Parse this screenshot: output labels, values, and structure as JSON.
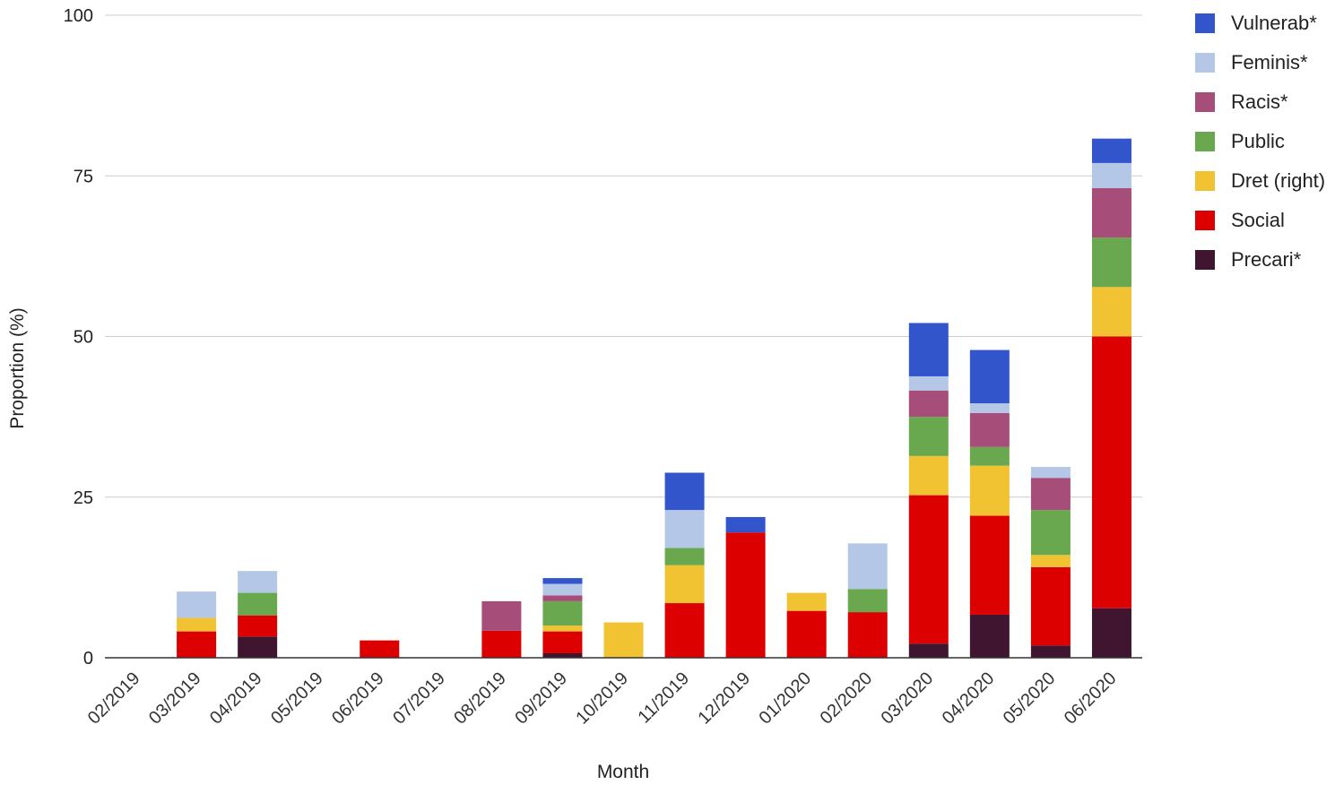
{
  "chart_data": {
    "type": "bar",
    "stacked": true,
    "xlabel": "Month",
    "ylabel": "Proportion (%)",
    "ylim": [
      0,
      100
    ],
    "yticks": [
      0,
      25,
      50,
      75,
      100
    ],
    "grid": true,
    "legend_position": "right",
    "categories": [
      "02/2019",
      "03/2019",
      "04/2019",
      "05/2019",
      "06/2019",
      "07/2019",
      "08/2019",
      "09/2019",
      "10/2019",
      "11/2019",
      "12/2019",
      "01/2020",
      "02/2020",
      "03/2020",
      "04/2020",
      "05/2020",
      "06/2020"
    ],
    "series": [
      {
        "name": "Precari*",
        "color": "#3f1530",
        "values": [
          0,
          0,
          3.3,
          0,
          0,
          0,
          0,
          0.7,
          0,
          0,
          0,
          0,
          0,
          2.2,
          6.7,
          1.9,
          7.7
        ]
      },
      {
        "name": "Social",
        "color": "#dd0000",
        "values": [
          0,
          4.1,
          3.3,
          0,
          2.7,
          0,
          4.2,
          3.4,
          0,
          8.5,
          19.5,
          7.3,
          7.1,
          23.1,
          15.4,
          12.2,
          42.3
        ]
      },
      {
        "name": "Dret (right)",
        "color": "#f1c232",
        "values": [
          0,
          2.1,
          0,
          0,
          0,
          0,
          0,
          0.9,
          5.5,
          5.9,
          0,
          2.8,
          0,
          6.1,
          7.8,
          1.9,
          7.7
        ]
      },
      {
        "name": "Public",
        "color": "#6aa84f",
        "values": [
          0,
          0,
          3.5,
          0,
          0,
          0,
          0,
          3.8,
          0,
          2.7,
          0,
          0,
          3.6,
          6.1,
          2.9,
          7.0,
          7.7
        ]
      },
      {
        "name": "Racis*",
        "color": "#a64d79",
        "values": [
          0,
          0,
          0,
          0,
          0,
          0,
          4.6,
          0.9,
          0,
          0,
          0,
          0,
          0,
          4.1,
          5.3,
          5.0,
          7.7
        ]
      },
      {
        "name": "Feminis*",
        "color": "#b4c7e7",
        "values": [
          0,
          4.1,
          3.4,
          0,
          0,
          0,
          0,
          1.8,
          0,
          5.9,
          0,
          0,
          7.1,
          2.2,
          1.5,
          1.7,
          3.9
        ]
      },
      {
        "name": "Vulnerab*",
        "color": "#3355cc",
        "values": [
          0,
          0,
          0,
          0,
          0,
          0,
          0,
          0.9,
          0,
          5.8,
          2.4,
          0,
          0,
          8.3,
          8.3,
          0,
          3.8
        ]
      }
    ],
    "legend_order": [
      "Vulnerab*",
      "Feminis*",
      "Racis*",
      "Public",
      "Dret (right)",
      "Social",
      "Precari*"
    ]
  }
}
